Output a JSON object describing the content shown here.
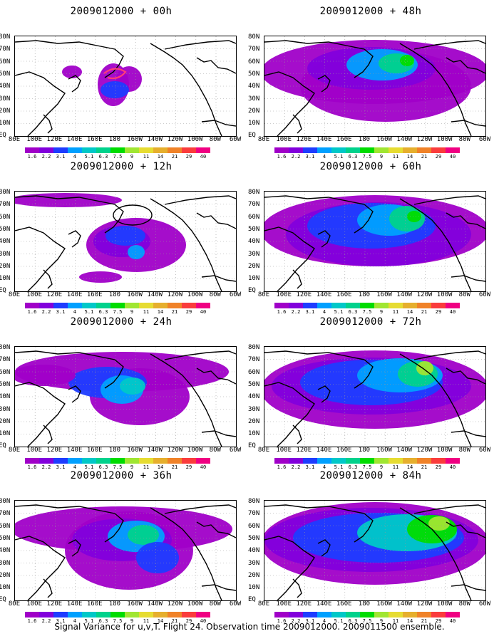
{
  "panels": [
    {
      "title": "2009012000 + 00h",
      "lead": "00h"
    },
    {
      "title": "2009012000 + 48h",
      "lead": "48h"
    },
    {
      "title": "2009012000 + 12h",
      "lead": "12h"
    },
    {
      "title": "2009012000 + 60h",
      "lead": "60h"
    },
    {
      "title": "2009012000 + 24h",
      "lead": "24h"
    },
    {
      "title": "2009012000 + 72h",
      "lead": "72h"
    },
    {
      "title": "2009012000 + 36h",
      "lead": "36h"
    },
    {
      "title": "2009012000 + 84h",
      "lead": "84h"
    }
  ],
  "lat_labels": [
    "80N",
    "70N",
    "60N",
    "50N",
    "40N",
    "30N",
    "20N",
    "10N",
    "EQ"
  ],
  "lon_labels": [
    "80E",
    "100E",
    "120E",
    "140E",
    "160E",
    "180",
    "160W",
    "140W",
    "120W",
    "100W",
    "80W",
    "60W"
  ],
  "colorbar": {
    "levels": [
      "1.6",
      "2.2",
      "3.1",
      "4",
      "5.1",
      "6.3",
      "7.5",
      "9",
      "11",
      "14",
      "21",
      "29",
      "40"
    ],
    "colors": [
      "#a000c8",
      "#8200dc",
      "#1e3cff",
      "#00a0ff",
      "#00c8c8",
      "#00d28c",
      "#00dc00",
      "#a0e632",
      "#e6dc32",
      "#e6af2d",
      "#f08228",
      "#fa3c3c",
      "#f00082"
    ]
  },
  "footer": "Signal Variance for u,v,T. Flight 24. Observation time 2009012000. 2009011500 ensemble."
}
